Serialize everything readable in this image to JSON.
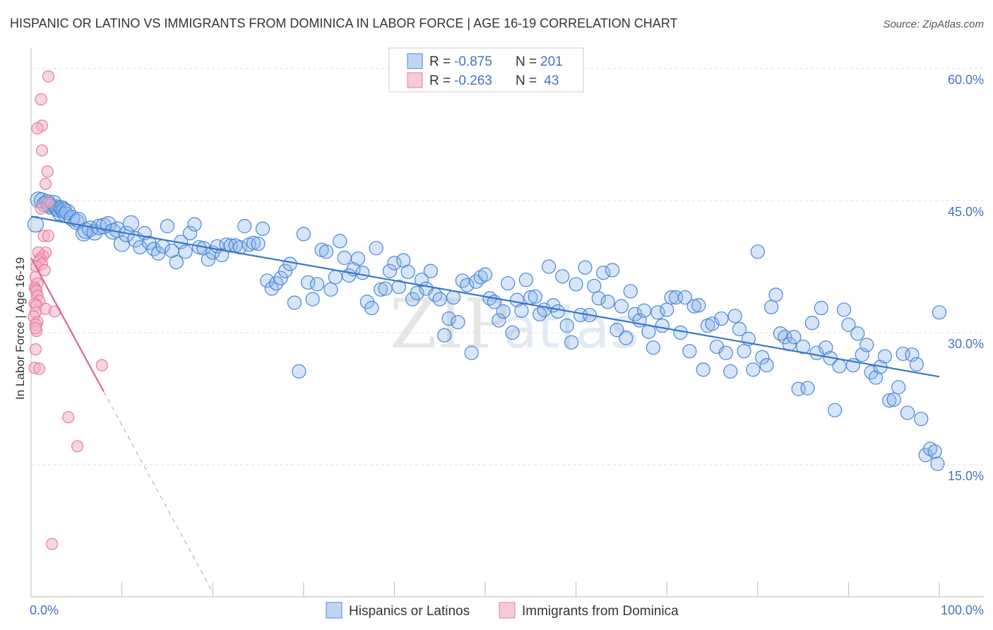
{
  "chart_data": {
    "type": "scatter",
    "title": "HISPANIC OR LATINO VS IMMIGRANTS FROM DOMINICA IN LABOR FORCE | AGE 16-19 CORRELATION CHART",
    "source": "Source: ZipAtlas.com",
    "ylabel": "In Labor Force | Age 16-19",
    "xlim": [
      0,
      100
    ],
    "ylim": [
      0,
      60
    ],
    "x_ticks": [
      0,
      10,
      20,
      30,
      40,
      50,
      60,
      70,
      80,
      90,
      100
    ],
    "x_tick_labels": [
      {
        "value": 0,
        "label": "0.0%"
      },
      {
        "value": 100,
        "label": "100.0%"
      }
    ],
    "y_ticks": [
      {
        "value": 15,
        "label": "15.0%"
      },
      {
        "value": 30,
        "label": "30.0%"
      },
      {
        "value": 45,
        "label": "45.0%"
      },
      {
        "value": 60,
        "label": "60.0%"
      }
    ],
    "watermark": {
      "part1": "ZIP",
      "part2": "atlas"
    },
    "legend": {
      "entries": [
        {
          "name": "Hispanics or Latinos",
          "r_label": "R =",
          "r_value": "-0.875",
          "n_label": "N =",
          "n_value": "201",
          "color": "#8ab4e8",
          "stroke": "#4a86d6"
        },
        {
          "name": "Immigrants from Dominica",
          "r_label": "R =",
          "r_value": "-0.263",
          "n_label": "N =",
          "n_value": " 43",
          "color": "#f4b3c6",
          "stroke": "#e57ba0"
        }
      ]
    },
    "series": [
      {
        "name": "Hispanics or Latinos",
        "color": "#4a86d6",
        "trend": {
          "x": [
            0,
            100
          ],
          "y": [
            43.2,
            25.0
          ]
        },
        "points": [
          [
            0.5,
            42.3
          ],
          [
            0.8,
            45.1
          ],
          [
            1.2,
            45.0
          ],
          [
            1.5,
            44.6
          ],
          [
            1.8,
            44.8
          ],
          [
            2.0,
            44.5
          ],
          [
            2.2,
            44.3
          ],
          [
            2.5,
            44.7
          ],
          [
            2.8,
            44.2
          ],
          [
            3.0,
            44.0
          ],
          [
            3.2,
            43.6
          ],
          [
            3.4,
            44.1
          ],
          [
            3.6,
            43.9
          ],
          [
            3.8,
            43.4
          ],
          [
            4.0,
            43.7
          ],
          [
            4.5,
            43.0
          ],
          [
            5.0,
            42.6
          ],
          [
            5.2,
            42.8
          ],
          [
            5.8,
            41.3
          ],
          [
            6.0,
            41.6
          ],
          [
            6.5,
            41.8
          ],
          [
            7.0,
            41.4
          ],
          [
            7.5,
            42.0
          ],
          [
            8.0,
            42.1
          ],
          [
            8.5,
            42.3
          ],
          [
            9.0,
            41.5
          ],
          [
            9.5,
            41.7
          ],
          [
            10.0,
            40.1
          ],
          [
            10.5,
            41.2
          ],
          [
            11.0,
            42.4
          ],
          [
            11.5,
            40.6
          ],
          [
            12.0,
            39.7
          ],
          [
            12.5,
            41.3
          ],
          [
            13.0,
            40.2
          ],
          [
            13.5,
            39.5
          ],
          [
            14.0,
            39.0
          ],
          [
            14.5,
            39.8
          ],
          [
            15.0,
            42.1
          ],
          [
            15.5,
            39.3
          ],
          [
            16.0,
            38.0
          ],
          [
            16.5,
            40.3
          ],
          [
            17.0,
            39.2
          ],
          [
            17.5,
            41.3
          ],
          [
            18.0,
            42.3
          ],
          [
            18.5,
            39.7
          ],
          [
            19.0,
            39.6
          ],
          [
            19.5,
            38.3
          ],
          [
            20.0,
            39.1
          ],
          [
            20.5,
            39.8
          ],
          [
            21.0,
            38.8
          ],
          [
            21.5,
            40.0
          ],
          [
            22.0,
            39.9
          ],
          [
            22.5,
            39.9
          ],
          [
            23.0,
            39.7
          ],
          [
            23.5,
            42.1
          ],
          [
            24.0,
            40.0
          ],
          [
            24.5,
            40.2
          ],
          [
            25.0,
            40.1
          ],
          [
            25.5,
            41.8
          ],
          [
            26.0,
            35.9
          ],
          [
            26.5,
            35.0
          ],
          [
            27.0,
            35.6
          ],
          [
            27.5,
            36.2
          ],
          [
            28.0,
            37.0
          ],
          [
            28.5,
            37.8
          ],
          [
            29.0,
            33.4
          ],
          [
            29.5,
            25.6
          ],
          [
            30.0,
            41.2
          ],
          [
            30.5,
            35.7
          ],
          [
            31.0,
            33.8
          ],
          [
            31.5,
            35.5
          ],
          [
            32.0,
            39.4
          ],
          [
            32.5,
            39.2
          ],
          [
            33.0,
            34.9
          ],
          [
            33.5,
            36.3
          ],
          [
            34.0,
            40.4
          ],
          [
            34.5,
            38.5
          ],
          [
            35.0,
            36.5
          ],
          [
            35.5,
            37.2
          ],
          [
            36.0,
            38.4
          ],
          [
            36.5,
            36.8
          ],
          [
            37.0,
            33.5
          ],
          [
            37.5,
            32.8
          ],
          [
            38.0,
            39.6
          ],
          [
            38.5,
            34.9
          ],
          [
            39.0,
            35.0
          ],
          [
            39.5,
            37.0
          ],
          [
            40.0,
            37.9
          ],
          [
            40.5,
            35.2
          ],
          [
            41.0,
            38.2
          ],
          [
            41.5,
            36.9
          ],
          [
            42.0,
            33.8
          ],
          [
            42.5,
            34.5
          ],
          [
            43.0,
            36.0
          ],
          [
            43.5,
            35.0
          ],
          [
            44.0,
            37.0
          ],
          [
            44.5,
            34.3
          ],
          [
            45.0,
            33.8
          ],
          [
            45.5,
            29.7
          ],
          [
            46.0,
            31.6
          ],
          [
            46.5,
            34.0
          ],
          [
            47.0,
            31.2
          ],
          [
            47.5,
            35.9
          ],
          [
            48.0,
            35.4
          ],
          [
            48.5,
            27.7
          ],
          [
            49.0,
            35.8
          ],
          [
            49.5,
            36.3
          ],
          [
            50.0,
            36.6
          ],
          [
            50.5,
            33.9
          ],
          [
            51.0,
            33.5
          ],
          [
            51.5,
            31.4
          ],
          [
            52.0,
            32.4
          ],
          [
            52.5,
            35.6
          ],
          [
            53.0,
            30.0
          ],
          [
            53.5,
            33.7
          ],
          [
            54.0,
            32.5
          ],
          [
            54.5,
            36.0
          ],
          [
            55.0,
            34.0
          ],
          [
            55.5,
            34.1
          ],
          [
            56.0,
            32.1
          ],
          [
            56.5,
            32.6
          ],
          [
            57.0,
            37.5
          ],
          [
            57.5,
            33.1
          ],
          [
            58.0,
            32.4
          ],
          [
            58.5,
            36.4
          ],
          [
            59.0,
            30.8
          ],
          [
            59.5,
            28.9
          ],
          [
            60.0,
            35.5
          ],
          [
            60.5,
            32.0
          ],
          [
            61.0,
            37.4
          ],
          [
            61.5,
            32.0
          ],
          [
            62.0,
            35.3
          ],
          [
            62.5,
            33.9
          ],
          [
            63.0,
            36.8
          ],
          [
            63.5,
            33.5
          ],
          [
            64.0,
            37.1
          ],
          [
            64.5,
            30.3
          ],
          [
            65.0,
            33.0
          ],
          [
            65.5,
            29.4
          ],
          [
            66.0,
            34.7
          ],
          [
            66.5,
            32.1
          ],
          [
            67.0,
            31.4
          ],
          [
            67.5,
            32.5
          ],
          [
            68.0,
            30.1
          ],
          [
            68.5,
            28.3
          ],
          [
            69.0,
            32.3
          ],
          [
            69.5,
            30.8
          ],
          [
            70.0,
            32.6
          ],
          [
            70.5,
            34.0
          ],
          [
            71.0,
            34.0
          ],
          [
            71.5,
            30.0
          ],
          [
            72.0,
            34.0
          ],
          [
            72.5,
            27.9
          ],
          [
            73.0,
            33.0
          ],
          [
            73.5,
            33.1
          ],
          [
            74.0,
            25.8
          ],
          [
            74.5,
            30.8
          ],
          [
            75.0,
            31.0
          ],
          [
            75.5,
            28.4
          ],
          [
            76.0,
            31.6
          ],
          [
            76.5,
            27.7
          ],
          [
            77.0,
            25.6
          ],
          [
            77.5,
            31.9
          ],
          [
            78.0,
            30.4
          ],
          [
            78.5,
            27.9
          ],
          [
            79.0,
            29.3
          ],
          [
            79.5,
            25.8
          ],
          [
            80.0,
            39.2
          ],
          [
            80.5,
            27.2
          ],
          [
            81.0,
            26.3
          ],
          [
            81.5,
            32.9
          ],
          [
            82.0,
            34.3
          ],
          [
            82.5,
            29.9
          ],
          [
            83.0,
            29.5
          ],
          [
            83.5,
            28.7
          ],
          [
            84.0,
            29.5
          ],
          [
            84.5,
            23.6
          ],
          [
            85.0,
            28.4
          ],
          [
            85.5,
            23.7
          ],
          [
            86.0,
            31.1
          ],
          [
            86.5,
            27.7
          ],
          [
            87.0,
            32.8
          ],
          [
            87.5,
            28.3
          ],
          [
            88.0,
            27.1
          ],
          [
            88.5,
            21.2
          ],
          [
            89.0,
            26.2
          ],
          [
            89.5,
            32.6
          ],
          [
            90.0,
            30.9
          ],
          [
            90.5,
            26.3
          ],
          [
            91.0,
            29.9
          ],
          [
            91.5,
            27.5
          ],
          [
            92.0,
            28.6
          ],
          [
            92.5,
            25.5
          ],
          [
            93.0,
            24.9
          ],
          [
            93.5,
            26.1
          ],
          [
            94.0,
            27.3
          ],
          [
            94.5,
            22.3
          ],
          [
            95.0,
            22.4
          ],
          [
            95.5,
            23.8
          ],
          [
            96.0,
            27.6
          ],
          [
            96.5,
            20.9
          ],
          [
            97.0,
            27.5
          ],
          [
            97.5,
            26.4
          ],
          [
            98.0,
            20.2
          ],
          [
            98.5,
            16.1
          ],
          [
            99.0,
            16.8
          ],
          [
            99.5,
            16.5
          ],
          [
            99.8,
            15.1
          ],
          [
            100.0,
            32.3
          ]
        ]
      },
      {
        "name": "Immigrants from Dominica",
        "color": "#e57ba0",
        "trend": {
          "x": [
            0,
            20
          ],
          "y": [
            38.5,
            0.5
          ],
          "solid_until_x": 8.0
        },
        "points": [
          [
            1.9,
            59.1
          ],
          [
            1.1,
            56.5
          ],
          [
            1.2,
            53.5
          ],
          [
            0.7,
            53.2
          ],
          [
            1.2,
            50.7
          ],
          [
            1.8,
            48.3
          ],
          [
            1.6,
            46.9
          ],
          [
            1.9,
            44.8
          ],
          [
            1.1,
            44.1
          ],
          [
            1.4,
            41.0
          ],
          [
            1.9,
            41.0
          ],
          [
            1.6,
            39.1
          ],
          [
            1.3,
            38.7
          ],
          [
            0.8,
            39.1
          ],
          [
            1.0,
            38.4
          ],
          [
            0.9,
            38.1
          ],
          [
            1.2,
            37.8
          ],
          [
            0.6,
            37.5
          ],
          [
            1.5,
            37.1
          ],
          [
            0.5,
            36.3
          ],
          [
            0.7,
            35.6
          ],
          [
            0.4,
            35.1
          ],
          [
            0.5,
            34.9
          ],
          [
            0.6,
            34.7
          ],
          [
            0.7,
            34.2
          ],
          [
            0.9,
            33.6
          ],
          [
            0.4,
            33.3
          ],
          [
            0.6,
            33.1
          ],
          [
            1.6,
            32.7
          ],
          [
            0.5,
            32.3
          ],
          [
            2.6,
            32.4
          ],
          [
            0.3,
            31.8
          ],
          [
            0.7,
            31.2
          ],
          [
            0.5,
            30.9
          ],
          [
            0.6,
            30.2
          ],
          [
            0.5,
            28.1
          ],
          [
            0.4,
            26.0
          ],
          [
            0.9,
            25.9
          ],
          [
            7.8,
            26.3
          ],
          [
            4.1,
            20.4
          ],
          [
            5.1,
            17.1
          ],
          [
            2.3,
            6.0
          ],
          [
            0.5,
            30.5
          ]
        ]
      }
    ]
  }
}
